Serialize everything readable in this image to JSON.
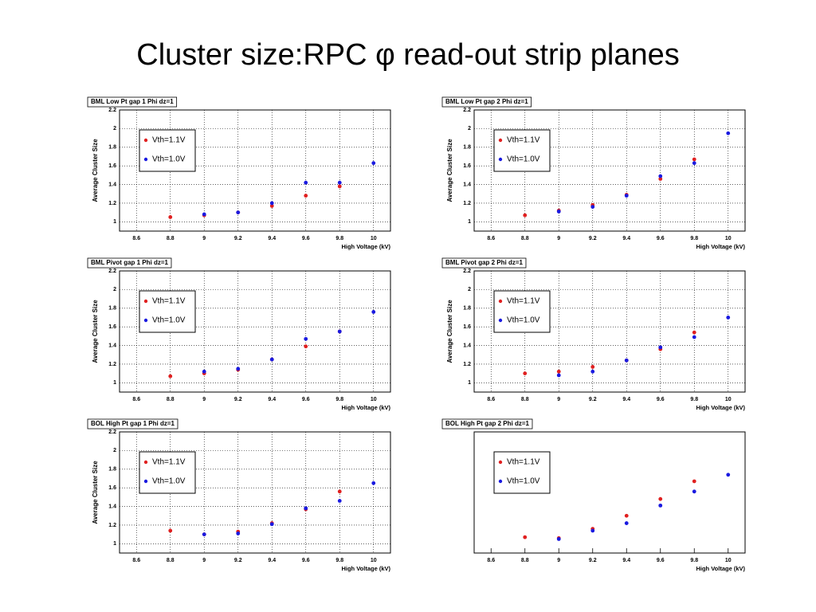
{
  "title": "Cluster size:RPC φ read-out strip planes",
  "chart_data": [
    {
      "type": "scatter",
      "title": "BML Low Pt gap 1 Phi dz=1",
      "xlabel": "High Voltage (kV)",
      "ylabel": "Average Cluster Size",
      "x": [
        8.8,
        9,
        9.2,
        9.4,
        9.6,
        9.8,
        10
      ],
      "xlim": [
        8.5,
        10.1
      ],
      "ylim": [
        0.9,
        2.2
      ],
      "xticks": [
        8.6,
        8.8,
        9,
        9.2,
        9.4,
        9.6,
        9.8,
        10
      ],
      "yticks": [
        1,
        1.2,
        1.4,
        1.6,
        1.8,
        2,
        2.2
      ],
      "grid": true,
      "legend": "upper left",
      "series": [
        {
          "name": "Vth=1.1V",
          "color": "#e02020",
          "values": [
            1.05,
            1.07,
            1.1,
            1.17,
            1.28,
            1.38,
            null
          ]
        },
        {
          "name": "Vth=1.0V",
          "color": "#1a1ae0",
          "values": [
            null,
            1.08,
            1.1,
            1.2,
            1.42,
            1.42,
            1.63
          ]
        }
      ]
    },
    {
      "type": "scatter",
      "title": "BML Low Pt gap 2 Phi dz=1",
      "xlabel": "High Voltage (kV)",
      "ylabel": "Average Cluster Size",
      "x": [
        8.8,
        9,
        9.2,
        9.4,
        9.6,
        9.8,
        10
      ],
      "xlim": [
        8.5,
        10.1
      ],
      "ylim": [
        0.9,
        2.2
      ],
      "xticks": [
        8.6,
        8.8,
        9,
        9.2,
        9.4,
        9.6,
        9.8,
        10
      ],
      "yticks": [
        1,
        1.2,
        1.4,
        1.6,
        1.8,
        2,
        2.2
      ],
      "grid": true,
      "legend": "upper left",
      "series": [
        {
          "name": "Vth=1.1V",
          "color": "#e02020",
          "values": [
            1.07,
            1.12,
            1.18,
            1.29,
            1.46,
            1.67,
            null
          ]
        },
        {
          "name": "Vth=1.0V",
          "color": "#1a1ae0",
          "values": [
            null,
            1.11,
            1.16,
            1.28,
            1.49,
            1.63,
            1.95
          ]
        }
      ]
    },
    {
      "type": "scatter",
      "title": "BML Pivot gap 1 Phi dz=1",
      "xlabel": "High Voltage (kV)",
      "ylabel": "Average Cluster Size",
      "x": [
        8.8,
        9,
        9.2,
        9.4,
        9.6,
        9.8,
        10
      ],
      "xlim": [
        8.5,
        10.1
      ],
      "ylim": [
        0.9,
        2.2
      ],
      "xticks": [
        8.6,
        8.8,
        9,
        9.2,
        9.4,
        9.6,
        9.8,
        10
      ],
      "yticks": [
        1,
        1.2,
        1.4,
        1.6,
        1.8,
        2,
        2.2
      ],
      "grid": true,
      "legend": "upper left",
      "series": [
        {
          "name": "Vth=1.1V",
          "color": "#e02020",
          "values": [
            1.07,
            1.1,
            1.14,
            1.25,
            1.39,
            1.55,
            null
          ]
        },
        {
          "name": "Vth=1.0V",
          "color": "#1a1ae0",
          "values": [
            null,
            1.12,
            1.15,
            1.25,
            1.47,
            1.55,
            1.76
          ]
        }
      ]
    },
    {
      "type": "scatter",
      "title": "BML Pivot gap 2 Phi dz=1",
      "xlabel": "High Voltage (kV)",
      "ylabel": "Average Cluster Size",
      "x": [
        8.8,
        9,
        9.2,
        9.4,
        9.6,
        9.8,
        10
      ],
      "xlim": [
        8.5,
        10.1
      ],
      "ylim": [
        0.9,
        2.2
      ],
      "xticks": [
        8.6,
        8.8,
        9,
        9.2,
        9.4,
        9.6,
        9.8,
        10
      ],
      "yticks": [
        1,
        1.2,
        1.4,
        1.6,
        1.8,
        2,
        2.2
      ],
      "grid": true,
      "legend": "upper left",
      "series": [
        {
          "name": "Vth=1.1V",
          "color": "#e02020",
          "values": [
            1.1,
            1.12,
            1.17,
            1.24,
            1.36,
            1.54,
            null
          ]
        },
        {
          "name": "Vth=1.0V",
          "color": "#1a1ae0",
          "values": [
            null,
            1.08,
            1.12,
            1.24,
            1.38,
            1.49,
            1.7
          ]
        }
      ]
    },
    {
      "type": "scatter",
      "title": "BOL High Pt gap 1 Phi dz=1",
      "xlabel": "High Voltage (kV)",
      "ylabel": "Average Cluster Size",
      "x": [
        8.8,
        9,
        9.2,
        9.4,
        9.6,
        9.8,
        10
      ],
      "xlim": [
        8.5,
        10.1
      ],
      "ylim": [
        0.9,
        2.2
      ],
      "xticks": [
        8.6,
        8.8,
        9,
        9.2,
        9.4,
        9.6,
        9.8,
        10
      ],
      "yticks": [
        1,
        1.2,
        1.4,
        1.6,
        1.8,
        2,
        2.2
      ],
      "grid": true,
      "legend": "upper left",
      "series": [
        {
          "name": "Vth=1.1V",
          "color": "#e02020",
          "values": [
            1.14,
            1.1,
            1.13,
            1.22,
            1.37,
            1.56,
            null
          ]
        },
        {
          "name": "Vth=1.0V",
          "color": "#1a1ae0",
          "values": [
            null,
            1.1,
            1.11,
            1.21,
            1.38,
            1.46,
            1.65
          ]
        }
      ]
    },
    {
      "type": "scatter",
      "title": "BOL High Pt gap 2 Phi dz=1",
      "xlabel": "High Voltage (kV)",
      "x": [
        8.8,
        9,
        9.2,
        9.4,
        9.6,
        9.8,
        10
      ],
      "xlim": [
        8.5,
        10.1
      ],
      "ylim": [
        0.9,
        2.2
      ],
      "xticks": [
        8.6,
        8.8,
        9,
        9.2,
        9.4,
        9.6,
        9.8,
        10
      ],
      "grid": false,
      "legend": "upper left",
      "series": [
        {
          "name": "Vth=1.1V",
          "color": "#e02020",
          "values": [
            1.07,
            1.06,
            1.16,
            1.3,
            1.48,
            1.67,
            null
          ]
        },
        {
          "name": "Vth=1.0V",
          "color": "#1a1ae0",
          "values": [
            null,
            1.05,
            1.14,
            1.22,
            1.41,
            1.56,
            1.74
          ]
        }
      ]
    }
  ]
}
